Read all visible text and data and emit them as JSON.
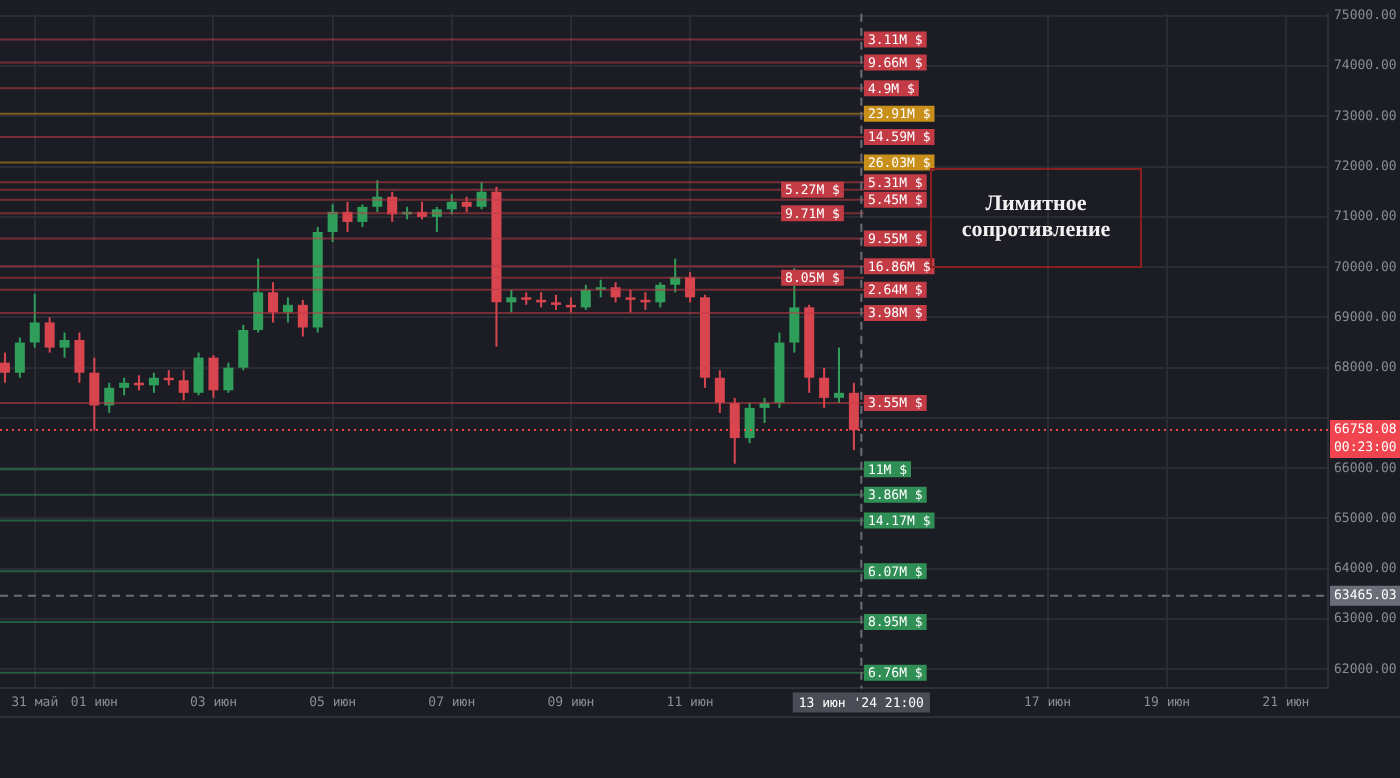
{
  "chart_data": {
    "type": "candlestick",
    "x": [
      "2024-05-30T12:00",
      "2024-05-30T18:00",
      "2024-05-31T00:00",
      "2024-05-31T06:00",
      "2024-05-31T12:00",
      "2024-05-31T18:00",
      "2024-06-01T00:00",
      "2024-06-01T06:00",
      "2024-06-01T12:00",
      "2024-06-01T18:00",
      "2024-06-02T00:00",
      "2024-06-02T06:00",
      "2024-06-02T12:00",
      "2024-06-02T18:00",
      "2024-06-03T00:00",
      "2024-06-03T06:00",
      "2024-06-03T12:00",
      "2024-06-03T18:00",
      "2024-06-04T00:00",
      "2024-06-04T06:00",
      "2024-06-04T12:00",
      "2024-06-04T18:00",
      "2024-06-05T00:00",
      "2024-06-05T06:00",
      "2024-06-05T12:00",
      "2024-06-05T18:00",
      "2024-06-06T00:00",
      "2024-06-06T06:00",
      "2024-06-06T12:00",
      "2024-06-06T18:00",
      "2024-06-07T00:00",
      "2024-06-07T06:00",
      "2024-06-07T12:00",
      "2024-06-07T18:00",
      "2024-06-08T00:00",
      "2024-06-08T06:00",
      "2024-06-08T12:00",
      "2024-06-08T18:00",
      "2024-06-09T00:00",
      "2024-06-09T06:00",
      "2024-06-09T12:00",
      "2024-06-09T18:00",
      "2024-06-10T00:00",
      "2024-06-10T06:00",
      "2024-06-10T12:00",
      "2024-06-10T18:00",
      "2024-06-11T00:00",
      "2024-06-11T06:00",
      "2024-06-11T12:00",
      "2024-06-11T18:00",
      "2024-06-12T00:00",
      "2024-06-12T06:00",
      "2024-06-12T12:00",
      "2024-06-12T18:00",
      "2024-06-13T00:00",
      "2024-06-13T06:00",
      "2024-06-13T12:00",
      "2024-06-13T18:00"
    ],
    "ohlc": [
      [
        68100,
        68300,
        67700,
        67900
      ],
      [
        67900,
        68600,
        67800,
        68500
      ],
      [
        68500,
        69470,
        68400,
        68900
      ],
      [
        68900,
        69000,
        68300,
        68400
      ],
      [
        68400,
        68700,
        68200,
        68550
      ],
      [
        68550,
        68700,
        67700,
        67900
      ],
      [
        67900,
        68200,
        66750,
        67250
      ],
      [
        67250,
        67700,
        67100,
        67600
      ],
      [
        67600,
        67800,
        67450,
        67700
      ],
      [
        67700,
        67850,
        67550,
        67650
      ],
      [
        67650,
        67900,
        67500,
        67800
      ],
      [
        67800,
        67950,
        67650,
        67750
      ],
      [
        67750,
        67950,
        67350,
        67500
      ],
      [
        67500,
        68300,
        67450,
        68200
      ],
      [
        68200,
        68250,
        67400,
        67550
      ],
      [
        67550,
        68100,
        67500,
        68000
      ],
      [
        68000,
        68850,
        67950,
        68750
      ],
      [
        68750,
        70170,
        68700,
        69500
      ],
      [
        69500,
        69700,
        68900,
        69100
      ],
      [
        69100,
        69400,
        68900,
        69250
      ],
      [
        69250,
        69350,
        68620,
        68800
      ],
      [
        68800,
        70800,
        68700,
        70700
      ],
      [
        70700,
        71250,
        70500,
        71100
      ],
      [
        71100,
        71300,
        70700,
        70900
      ],
      [
        70900,
        71250,
        70800,
        71200
      ],
      [
        71200,
        71730,
        71100,
        71400
      ],
      [
        71400,
        71500,
        70900,
        71050
      ],
      [
        71050,
        71200,
        70950,
        71100
      ],
      [
        71100,
        71300,
        70950,
        71000
      ],
      [
        71000,
        71200,
        70700,
        71150
      ],
      [
        71150,
        71450,
        71050,
        71300
      ],
      [
        71300,
        71400,
        71100,
        71200
      ],
      [
        71200,
        71690,
        71150,
        71500
      ],
      [
        71500,
        71600,
        68420,
        69300
      ],
      [
        69300,
        69550,
        69100,
        69400
      ],
      [
        69400,
        69500,
        69250,
        69350
      ],
      [
        69350,
        69500,
        69200,
        69300
      ],
      [
        69300,
        69450,
        69150,
        69250
      ],
      [
        69250,
        69400,
        69100,
        69200
      ],
      [
        69200,
        69650,
        69150,
        69550
      ],
      [
        69550,
        69750,
        69400,
        69600
      ],
      [
        69600,
        69700,
        69300,
        69400
      ],
      [
        69400,
        69550,
        69100,
        69350
      ],
      [
        69350,
        69500,
        69150,
        69300
      ],
      [
        69300,
        69700,
        69200,
        69650
      ],
      [
        69650,
        70170,
        69500,
        69800
      ],
      [
        69800,
        69900,
        69300,
        69400
      ],
      [
        69400,
        69450,
        67600,
        67800
      ],
      [
        67800,
        67950,
        67100,
        67300
      ],
      [
        67300,
        67400,
        66090,
        66600
      ],
      [
        66600,
        67300,
        66500,
        67200
      ],
      [
        67200,
        67400,
        66900,
        67300
      ],
      [
        67300,
        68700,
        67200,
        68500
      ],
      [
        68500,
        69980,
        68300,
        69200
      ],
      [
        69200,
        69250,
        67500,
        67800
      ],
      [
        67800,
        68000,
        67200,
        67400
      ],
      [
        67400,
        68400,
        67300,
        67500
      ],
      [
        67500,
        67700,
        66360,
        66758.08
      ]
    ],
    "colors": [
      "#d9454f",
      "#2e9e5a",
      "#2e9e5a",
      "#d9454f",
      "#2e9e5a",
      "#d9454f",
      "#d9454f",
      "#2e9e5a",
      "#2e9e5a",
      "#d9454f",
      "#2e9e5a",
      "#d9454f",
      "#d9454f",
      "#2e9e5a",
      "#d9454f",
      "#2e9e5a",
      "#2e9e5a",
      "#2e9e5a",
      "#d9454f",
      "#2e9e5a",
      "#d9454f",
      "#2e9e5a",
      "#2e9e5a",
      "#d9454f",
      "#2e9e5a",
      "#2e9e5a",
      "#d9454f",
      "#2e9e5a",
      "#d9454f",
      "#2e9e5a",
      "#2e9e5a",
      "#d9454f",
      "#2e9e5a",
      "#d9454f",
      "#2e9e5a",
      "#d9454f",
      "#d9454f",
      "#d9454f",
      "#d9454f",
      "#2e9e5a",
      "#2e9e5a",
      "#d9454f",
      "#d9454f",
      "#d9454f",
      "#2e9e5a",
      "#2e9e5a",
      "#d9454f",
      "#d9454f",
      "#d9454f",
      "#d9454f",
      "#2e9e5a",
      "#2e9e5a",
      "#2e9e5a",
      "#2e9e5a",
      "#d9454f",
      "#d9454f",
      "#2e9e5a",
      "#d9454f"
    ],
    "xlim": [
      "2024-05-30T10:00",
      "2024-06-21T17:00"
    ],
    "xticks": [
      {
        "value": "2024-05-31",
        "label": "31 май"
      },
      {
        "value": "2024-06-01",
        "label": "01 июн"
      },
      {
        "value": "2024-06-03",
        "label": "03 июн"
      },
      {
        "value": "2024-06-05",
        "label": "05 июн"
      },
      {
        "value": "2024-06-07",
        "label": "07 июн"
      },
      {
        "value": "2024-06-09",
        "label": "09 июн"
      },
      {
        "value": "2024-06-11",
        "label": "11 июн"
      },
      {
        "value": "2024-06-17",
        "label": "17 июн"
      },
      {
        "value": "2024-06-19",
        "label": "19 июн"
      },
      {
        "value": "2024-06-21",
        "label": "21 июн"
      }
    ],
    "ylim": [
      61620,
      75040
    ],
    "yticks": [
      {
        "value": 62000,
        "label": "62000.00"
      },
      {
        "value": 63000,
        "label": "63000.00"
      },
      {
        "value": 64000,
        "label": "64000.00"
      },
      {
        "value": 65000,
        "label": "65000.00"
      },
      {
        "value": 66000,
        "label": "66000.00"
      },
      {
        "value": 67000,
        "label": null
      },
      {
        "value": 68000,
        "label": "68000.00"
      },
      {
        "value": 69000,
        "label": "69000.00"
      },
      {
        "value": 70000,
        "label": "70000.00"
      },
      {
        "value": 71000,
        "label": "71000.00"
      },
      {
        "value": 72000,
        "label": "72000.00"
      },
      {
        "value": 73000,
        "label": "73000.00"
      },
      {
        "value": 74000,
        "label": "74000.00"
      },
      {
        "value": 75000,
        "label": "75000.00"
      }
    ],
    "grid": true,
    "legend": false,
    "ref_lines": [
      {
        "axis": "y",
        "value": 74530,
        "label": "3.11M $",
        "color": "#c23b45"
      },
      {
        "axis": "y",
        "value": 74070,
        "label": "9.66M $",
        "color": "#c23b45"
      },
      {
        "axis": "y",
        "value": 73560,
        "label": "4.9M $",
        "color": "#c23b45"
      },
      {
        "axis": "y",
        "value": 73050,
        "label": "23.91M $",
        "color": "#c8901a"
      },
      {
        "axis": "y",
        "value": 72590,
        "label": "14.59M $",
        "color": "#c23b45"
      },
      {
        "axis": "y",
        "value": 72080,
        "label": "26.03M $",
        "color": "#c8901a"
      },
      {
        "axis": "y",
        "value": 71690,
        "label": "5.31M $",
        "color": "#c23b45"
      },
      {
        "axis": "y",
        "value": 71540,
        "label": "5.27M $",
        "color": "#c23b45"
      },
      {
        "axis": "y",
        "value": 71340,
        "label": "5.45M $",
        "color": "#c23b45"
      },
      {
        "axis": "y",
        "value": 71070,
        "label": "9.71M $",
        "color": "#c23b45"
      },
      {
        "axis": "y",
        "value": 70570,
        "label": "9.55M $",
        "color": "#c23b45"
      },
      {
        "axis": "y",
        "value": 70020,
        "label": "16.86M $",
        "color": "#c23b45"
      },
      {
        "axis": "y",
        "value": 69790,
        "label": "8.05M $",
        "color": "#c23b45"
      },
      {
        "axis": "y",
        "value": 69550,
        "label": "2.64M $",
        "color": "#c23b45"
      },
      {
        "axis": "y",
        "value": 69090,
        "label": "3.98M $",
        "color": "#c23b45"
      },
      {
        "axis": "y",
        "value": 67300,
        "label": "3.55M $",
        "color": "#c23b45"
      },
      {
        "axis": "y",
        "value": 65980,
        "label": "11M $",
        "color": "#2f8f55"
      },
      {
        "axis": "y",
        "value": 65470,
        "label": "3.86M $",
        "color": "#2f8f55"
      },
      {
        "axis": "y",
        "value": 64960,
        "label": "14.17M $",
        "color": "#2f8f55"
      },
      {
        "axis": "y",
        "value": 63950,
        "label": "6.07M $",
        "color": "#2f8f55"
      },
      {
        "axis": "y",
        "value": 62940,
        "label": "8.95M $",
        "color": "#2f8f55"
      },
      {
        "axis": "y",
        "value": 61930,
        "label": "6.76M $",
        "color": "#2f8f55"
      },
      {
        "axis": "y",
        "value": 66758.08,
        "label": "66758.08",
        "color": "#f0454f",
        "line_style": "dotted"
      },
      {
        "axis": "y",
        "value": 63465.03,
        "label": "63465.03",
        "color": "#6b6d78",
        "line_style": "dashed"
      },
      {
        "axis": "x",
        "value": "2024-06-13T21:00",
        "label": "13 июн '24 21:00",
        "color": "#6b6d78",
        "line_style": "dashed"
      }
    ],
    "annotations": [
      "Лимитное сопротивление",
      "00:23:00"
    ]
  }
}
